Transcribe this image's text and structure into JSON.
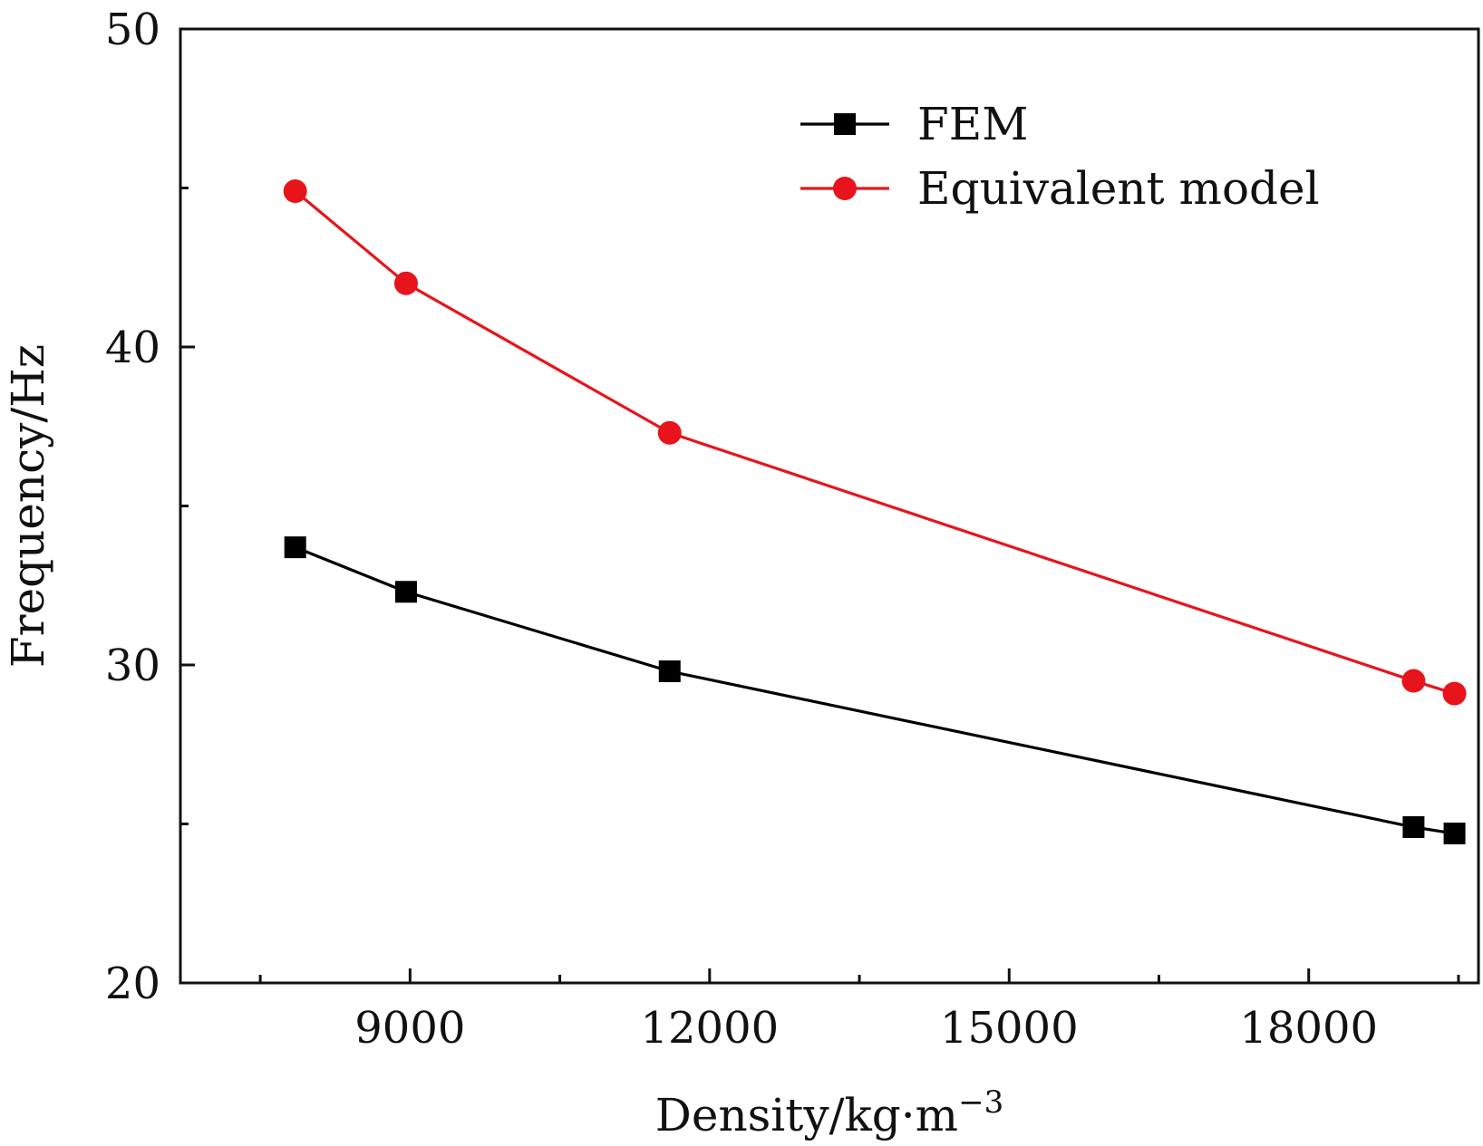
{
  "chart_data": {
    "type": "line",
    "xlabel": "Density/kg·m",
    "xlabel_superscript": "−3",
    "ylabel": "Frequency/Hz",
    "xlim": [
      6700,
      19700
    ],
    "ylim": [
      20,
      50
    ],
    "x_ticks": [
      9000,
      12000,
      15000,
      18000
    ],
    "x_tick_labels": [
      "9000",
      "12000",
      "15000",
      "18000"
    ],
    "x_minor_ticks": [
      7500,
      10500,
      13500,
      16500,
      19500
    ],
    "y_ticks": [
      20,
      30,
      40,
      50
    ],
    "y_tick_labels": [
      "20",
      "30",
      "40",
      "50"
    ],
    "y_minor_ticks": [
      25,
      35,
      45
    ],
    "grid": false,
    "legend_position": "top-right",
    "series": [
      {
        "name": "FEM",
        "color": "#000000",
        "marker": "square",
        "x": [
          7850,
          8960,
          11600,
          19050,
          19460
        ],
        "y": [
          33.7,
          32.3,
          29.8,
          24.9,
          24.7
        ]
      },
      {
        "name": "Equivalent model",
        "color": "#e8141c",
        "marker": "circle",
        "x": [
          7850,
          8960,
          11600,
          19050,
          19460
        ],
        "y": [
          44.9,
          42.0,
          37.3,
          29.5,
          29.1
        ]
      }
    ]
  }
}
